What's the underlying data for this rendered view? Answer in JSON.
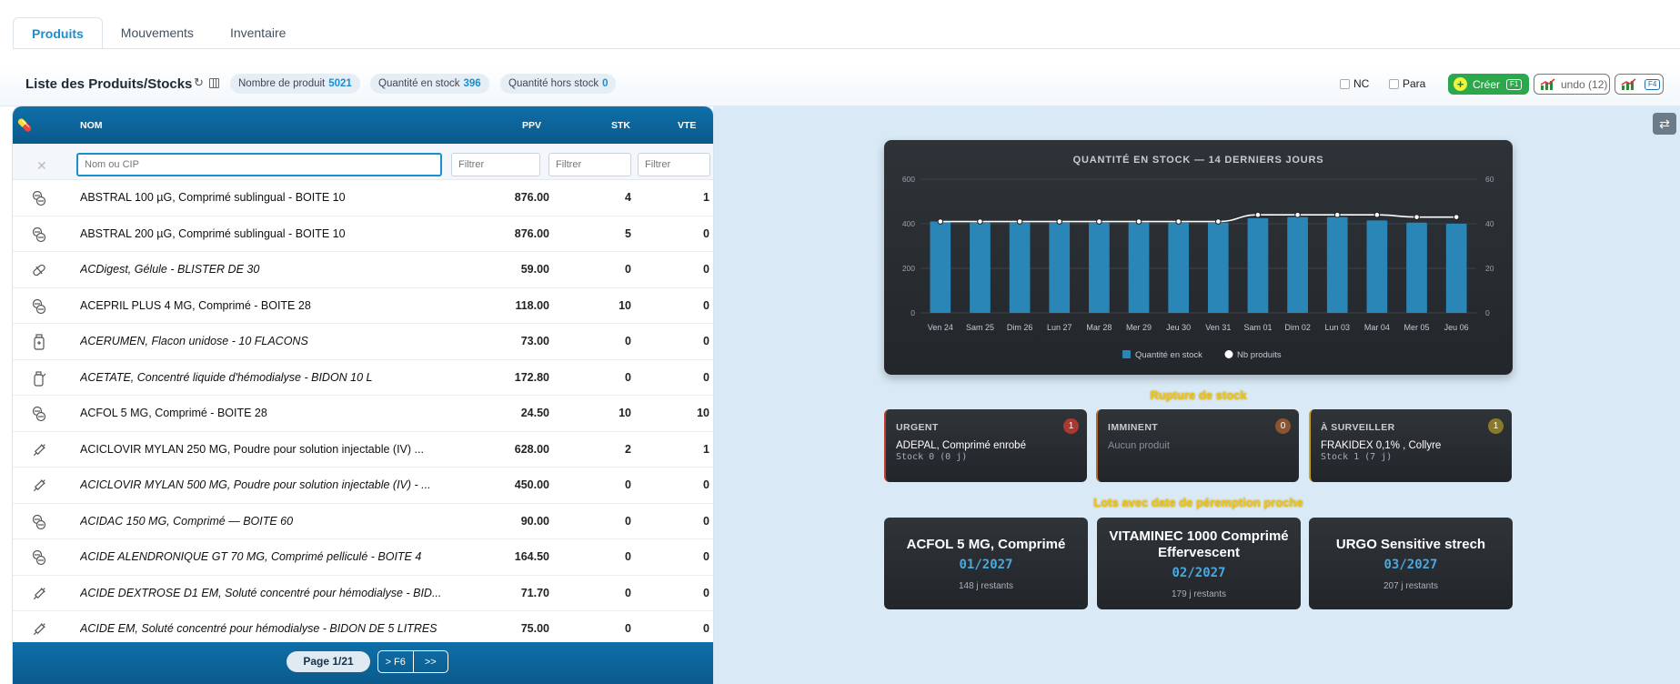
{
  "tabs": [
    {
      "label": "Produits",
      "active": true
    },
    {
      "label": "Mouvements",
      "active": false
    },
    {
      "label": "Inventaire",
      "active": false
    }
  ],
  "header": {
    "title": "Liste des Produits/Stocks",
    "stats": [
      {
        "label": "Nombre de produit",
        "value": "5021"
      },
      {
        "label": "Quantité en stock",
        "value": "396"
      },
      {
        "label": "Quantité hors stock",
        "value": "0"
      }
    ],
    "checkboxes": [
      {
        "label": "NC",
        "checked": false
      },
      {
        "label": "Para",
        "checked": false
      }
    ],
    "create_label": "Créer",
    "create_key": "F1",
    "undo_label": "undo (12)",
    "stats_key": "F4"
  },
  "table": {
    "columns": [
      "NOM",
      "PPV",
      "STK",
      "VTE"
    ],
    "filters": {
      "name_placeholder": "Nom ou CIP",
      "ppv_placeholder": "Filtrer",
      "stk_placeholder": "Filtrer",
      "vte_placeholder": "Filtrer"
    },
    "rows": [
      {
        "icon": "pill-icon",
        "nom": "ABSTRAL 100 µG, Comprimé sublingual - BOITE 10",
        "italic": false,
        "ppv": "876.00",
        "stk": "4",
        "vte": "1"
      },
      {
        "icon": "pill-icon",
        "nom": "ABSTRAL 200 µG, Comprimé sublingual - BOITE 10",
        "italic": false,
        "ppv": "876.00",
        "stk": "5",
        "vte": "0"
      },
      {
        "icon": "capsule-icon",
        "nom": "ACDigest, Gélule - BLISTER DE 30",
        "italic": true,
        "ppv": "59.00",
        "stk": "0",
        "vte": "0"
      },
      {
        "icon": "pill-icon",
        "nom": "ACEPRIL PLUS 4 MG, Comprimé - BOITE 28",
        "italic": false,
        "ppv": "118.00",
        "stk": "10",
        "vte": "0"
      },
      {
        "icon": "vial-icon",
        "nom": "ACERUMEN, Flacon unidose - 10 FLACONS",
        "italic": true,
        "ppv": "73.00",
        "stk": "0",
        "vte": "0"
      },
      {
        "icon": "bottle-icon",
        "nom": "ACETATE, Concentré liquide d'hémodialyse - BIDON 10 L",
        "italic": true,
        "ppv": "172.80",
        "stk": "0",
        "vte": "0"
      },
      {
        "icon": "pill-icon",
        "nom": "ACFOL 5 MG, Comprimé - BOITE 28",
        "italic": false,
        "ppv": "24.50",
        "stk": "10",
        "vte": "10"
      },
      {
        "icon": "syringe-icon",
        "nom": "ACICLOVIR MYLAN 250 MG, Poudre pour solution injectable (IV) ...",
        "italic": false,
        "ppv": "628.00",
        "stk": "2",
        "vte": "1"
      },
      {
        "icon": "syringe-icon",
        "nom": "ACICLOVIR MYLAN 500 MG, Poudre pour solution injectable (IV) - ...",
        "italic": true,
        "ppv": "450.00",
        "stk": "0",
        "vte": "0"
      },
      {
        "icon": "pill-icon",
        "nom": "ACIDAC 150 MG, Comprimé — BOITE 60",
        "italic": true,
        "ppv": "90.00",
        "stk": "0",
        "vte": "0"
      },
      {
        "icon": "pill-icon",
        "nom": "ACIDE ALENDRONIQUE GT 70 MG, Comprimé pelliculé - BOITE 4",
        "italic": true,
        "ppv": "164.50",
        "stk": "0",
        "vte": "0"
      },
      {
        "icon": "syringe-icon",
        "nom": "ACIDE DEXTROSE D1 EM, Soluté concentré pour hémodialyse - BID...",
        "italic": true,
        "ppv": "71.70",
        "stk": "0",
        "vte": "0"
      },
      {
        "icon": "syringe-icon",
        "nom": "ACIDE EM, Soluté concentré pour hémodialyse - BIDON DE 5 LITRES",
        "italic": true,
        "ppv": "75.00",
        "stk": "0",
        "vte": "0"
      }
    ],
    "pager": {
      "label": "Page 1/21",
      "next": "> F6",
      "last": ">>"
    }
  },
  "chart_data": {
    "type": "bar",
    "title": "QUANTITÉ EN STOCK — 14 DERNIERS JOURS",
    "categories": [
      "Ven 24",
      "Sam 25",
      "Dim 26",
      "Lun 27",
      "Mar 28",
      "Mer 29",
      "Jeu 30",
      "Ven 31",
      "Sam 01",
      "Dim 02",
      "Lun 03",
      "Mar 04",
      "Mer 05",
      "Jeu 06"
    ],
    "series": [
      {
        "name": "Quantité en stock",
        "axis": "left",
        "type": "bar",
        "color": "#2b86b8",
        "values": [
          410,
          405,
          405,
          405,
          405,
          405,
          405,
          405,
          425,
          430,
          430,
          415,
          405,
          400
        ]
      },
      {
        "name": "Nb produits",
        "axis": "right",
        "type": "line",
        "color": "#ffffff",
        "values": [
          41,
          41,
          41,
          41,
          41,
          41,
          41,
          41,
          44,
          44,
          44,
          44,
          43,
          43
        ]
      }
    ],
    "y_left": {
      "range": [
        0,
        600
      ],
      "ticks": [
        "0",
        "200",
        "400",
        "600"
      ]
    },
    "y_right": {
      "range": [
        0,
        60
      ],
      "ticks": [
        "0",
        "20",
        "40",
        "60"
      ]
    },
    "legend": "bottom",
    "grid": true
  },
  "rupture": {
    "title": "Rupture de stock",
    "cards": [
      {
        "title": "URGENT",
        "count": "1",
        "color": "#c0392b",
        "product": "ADEPAL, Comprimé enrobé",
        "detail": "Stock 0 (0 j)"
      },
      {
        "title": "IMMINENT",
        "count": "0",
        "color": "#b8652a",
        "empty": "Aucun produit"
      },
      {
        "title": "À SURVEILLER",
        "count": "1",
        "color": "#c9a227",
        "product": "FRAKIDEX 0,1% , Collyre",
        "detail": "Stock 1 (7 j)"
      }
    ]
  },
  "expiry": {
    "title": "Lots avec date de péremption proche",
    "cards": [
      {
        "name": "ACFOL 5 MG, Comprimé",
        "date": "01/2027",
        "days": "148 j restants"
      },
      {
        "name": "VITAMINEC 1000 Comprimé Effervescent",
        "date": "02/2027",
        "days": "179 j restants"
      },
      {
        "name": "URGO Sensitive strech",
        "date": "03/2027",
        "days": "207 j restants"
      }
    ]
  }
}
